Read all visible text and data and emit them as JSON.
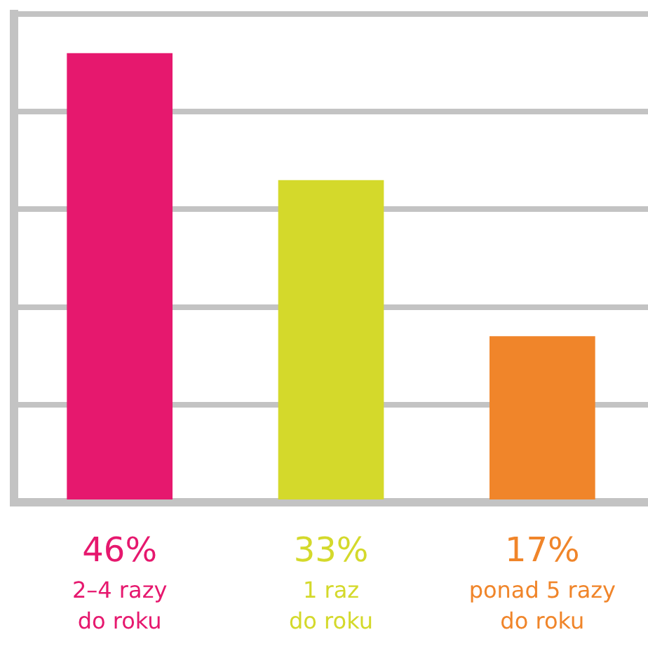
{
  "chart_data": {
    "type": "bar",
    "categories": [
      "2–4 razy do roku",
      "1 raz do roku",
      "ponad 5 razy do roku"
    ],
    "values": [
      46,
      33,
      17
    ],
    "colors": [
      "#e6186e",
      "#d4d92b",
      "#f0852a"
    ],
    "value_labels": [
      "46%",
      "33%",
      "17%"
    ],
    "grid": "y",
    "tick_labels": "x",
    "legend": false
  }
}
